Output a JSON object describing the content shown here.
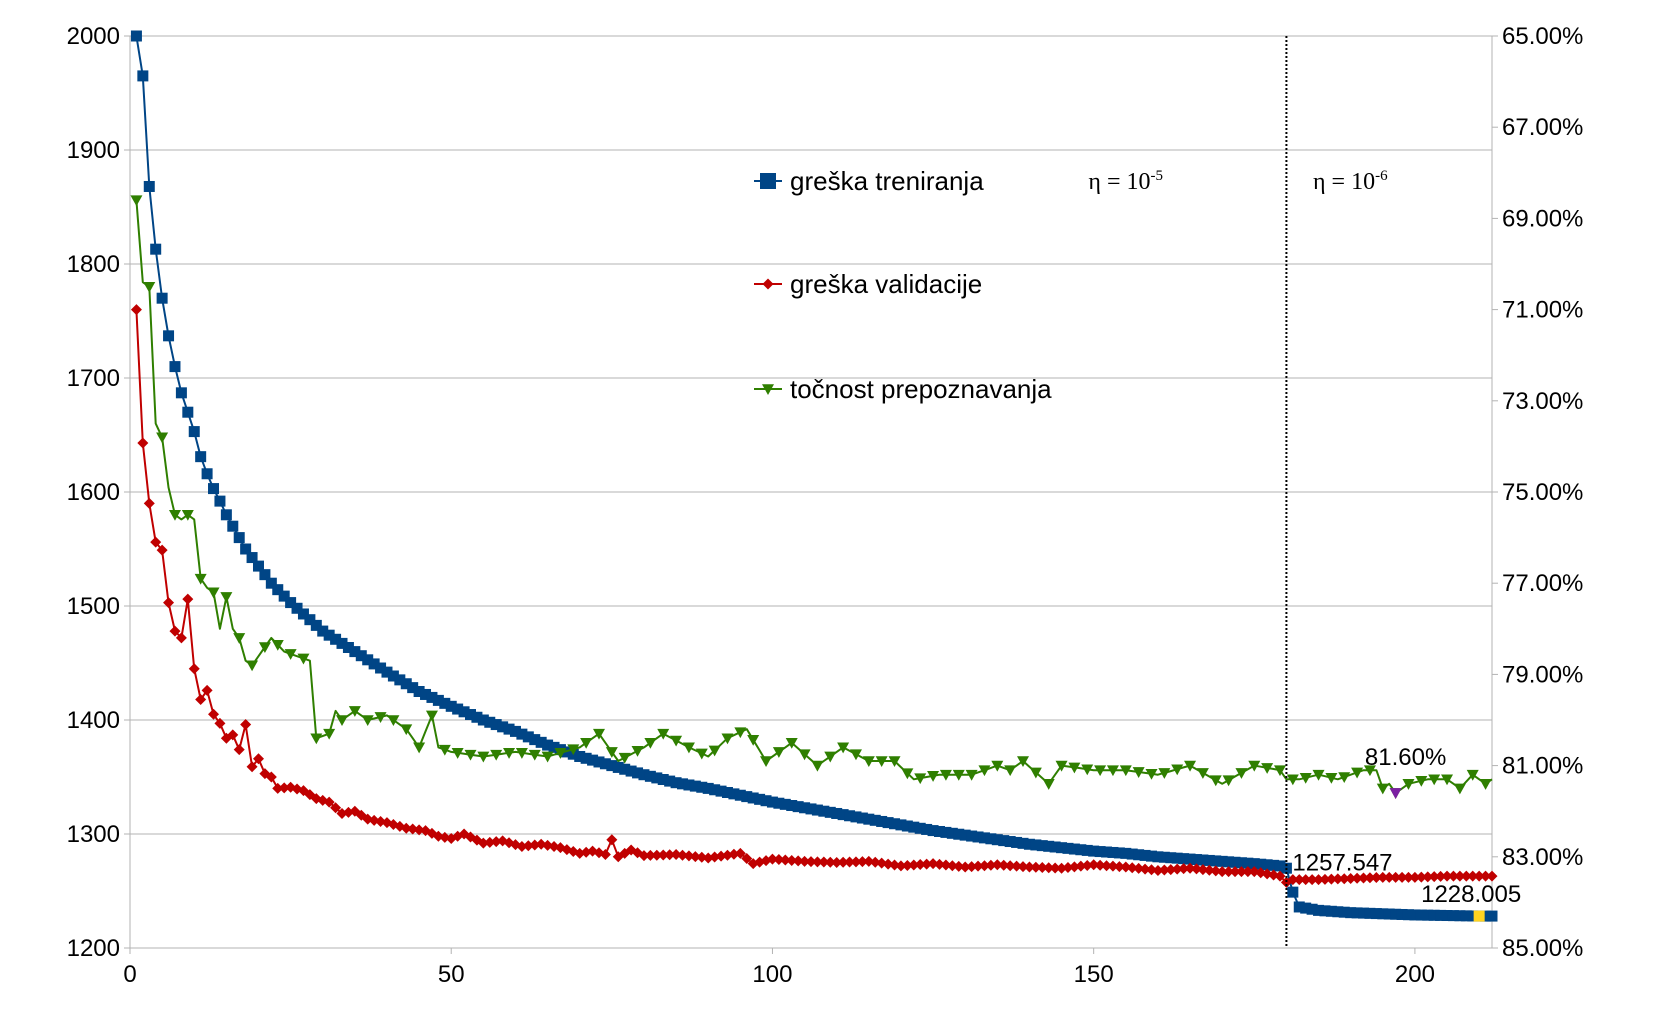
{
  "chart_data": {
    "type": "line",
    "title": "",
    "xlabel": "",
    "ylabel": "",
    "x_range": [
      0,
      212
    ],
    "x_ticks": [
      "0",
      "50",
      "100",
      "150",
      "200"
    ],
    "y_left_range": [
      1200,
      2000
    ],
    "y_left_ticks": [
      "1200",
      "1300",
      "1400",
      "1500",
      "1600",
      "1700",
      "1800",
      "1900",
      "2000"
    ],
    "y_right_range_top_to_bottom": [
      65,
      85
    ],
    "y_right_ticks": [
      "65.00%",
      "67.00%",
      "69.00%",
      "71.00%",
      "73.00%",
      "75.00%",
      "77.00%",
      "79.00%",
      "81.00%",
      "83.00%",
      "85.00%"
    ],
    "grid": true,
    "legend_position": "top-center",
    "vertical_marker_x": 180,
    "annotations": {
      "eta_left_base": "η = 10",
      "eta_left_exp": "-5",
      "eta_right_base": "η = 10",
      "eta_right_exp": "-6"
    },
    "series": [
      {
        "name": "greška treniranja",
        "axis": "left",
        "color": "#004586",
        "marker": "square",
        "anchors": [
          [
            1,
            2000
          ],
          [
            2,
            1965
          ],
          [
            3,
            1868
          ],
          [
            4,
            1813
          ],
          [
            5,
            1770
          ],
          [
            6,
            1737
          ],
          [
            7,
            1710
          ],
          [
            8,
            1687
          ],
          [
            9,
            1670
          ],
          [
            10,
            1653
          ],
          [
            11,
            1631
          ],
          [
            12,
            1616
          ],
          [
            13,
            1603
          ],
          [
            14,
            1592
          ],
          [
            15,
            1580
          ],
          [
            16,
            1570
          ],
          [
            17,
            1560
          ],
          [
            18,
            1550
          ],
          [
            20,
            1535
          ],
          [
            22,
            1520
          ],
          [
            25,
            1503
          ],
          [
            28,
            1488
          ],
          [
            30,
            1478
          ],
          [
            35,
            1460
          ],
          [
            40,
            1442
          ],
          [
            45,
            1425
          ],
          [
            50,
            1412
          ],
          [
            55,
            1400
          ],
          [
            60,
            1390
          ],
          [
            65,
            1378
          ],
          [
            70,
            1368
          ],
          [
            75,
            1360
          ],
          [
            80,
            1352
          ],
          [
            85,
            1345
          ],
          [
            90,
            1340
          ],
          [
            95,
            1334
          ],
          [
            100,
            1328
          ],
          [
            105,
            1323
          ],
          [
            110,
            1318
          ],
          [
            115,
            1313
          ],
          [
            120,
            1308
          ],
          [
            125,
            1303
          ],
          [
            130,
            1299
          ],
          [
            135,
            1295
          ],
          [
            140,
            1291
          ],
          [
            145,
            1288
          ],
          [
            150,
            1285
          ],
          [
            155,
            1283
          ],
          [
            160,
            1280
          ],
          [
            165,
            1278
          ],
          [
            170,
            1276
          ],
          [
            175,
            1274
          ],
          [
            179,
            1272
          ],
          [
            180,
            1270
          ],
          [
            181,
            1249
          ],
          [
            182,
            1236
          ],
          [
            185,
            1233
          ],
          [
            190,
            1231
          ],
          [
            195,
            1230
          ],
          [
            200,
            1229
          ],
          [
            205,
            1228.5
          ],
          [
            210,
            1228.005
          ],
          [
            212,
            1228
          ]
        ]
      },
      {
        "name": "greška validacije",
        "axis": "left",
        "color": "#c00000",
        "marker": "diamond",
        "anchors": [
          [
            1,
            1760
          ],
          [
            2,
            1643
          ],
          [
            3,
            1590
          ],
          [
            4,
            1556
          ],
          [
            5,
            1549
          ],
          [
            6,
            1503
          ],
          [
            7,
            1478
          ],
          [
            8,
            1472
          ],
          [
            9,
            1506
          ],
          [
            10,
            1445
          ],
          [
            11,
            1418
          ],
          [
            12,
            1426
          ],
          [
            13,
            1405
          ],
          [
            14,
            1397
          ],
          [
            15,
            1384
          ],
          [
            16,
            1387
          ],
          [
            17,
            1374
          ],
          [
            18,
            1396
          ],
          [
            19,
            1359
          ],
          [
            20,
            1366
          ],
          [
            21,
            1353
          ],
          [
            22,
            1350
          ],
          [
            23,
            1340
          ],
          [
            25,
            1341
          ],
          [
            27,
            1338
          ],
          [
            29,
            1331
          ],
          [
            31,
            1328
          ],
          [
            33,
            1318
          ],
          [
            35,
            1320
          ],
          [
            37,
            1313
          ],
          [
            40,
            1310
          ],
          [
            43,
            1305
          ],
          [
            46,
            1303
          ],
          [
            48,
            1298
          ],
          [
            50,
            1296
          ],
          [
            52,
            1300
          ],
          [
            55,
            1292
          ],
          [
            58,
            1294
          ],
          [
            61,
            1289
          ],
          [
            64,
            1291
          ],
          [
            67,
            1288
          ],
          [
            70,
            1283
          ],
          [
            72,
            1285
          ],
          [
            74,
            1282
          ],
          [
            75,
            1295
          ],
          [
            76,
            1280
          ],
          [
            78,
            1286
          ],
          [
            80,
            1281
          ],
          [
            85,
            1282
          ],
          [
            90,
            1279
          ],
          [
            95,
            1283
          ],
          [
            97,
            1274
          ],
          [
            100,
            1278
          ],
          [
            105,
            1276
          ],
          [
            110,
            1275
          ],
          [
            115,
            1276
          ],
          [
            120,
            1272
          ],
          [
            125,
            1274
          ],
          [
            130,
            1271
          ],
          [
            135,
            1273
          ],
          [
            140,
            1271
          ],
          [
            145,
            1270
          ],
          [
            150,
            1273
          ],
          [
            155,
            1271
          ],
          [
            160,
            1268
          ],
          [
            165,
            1270
          ],
          [
            170,
            1267
          ],
          [
            175,
            1267
          ],
          [
            179,
            1263
          ],
          [
            180,
            1257.547
          ],
          [
            181,
            1260
          ],
          [
            185,
            1260
          ],
          [
            190,
            1261
          ],
          [
            195,
            1262
          ],
          [
            200,
            1262
          ],
          [
            205,
            1263
          ],
          [
            212,
            1263
          ]
        ]
      },
      {
        "name": "točnost prepoznavanja",
        "axis": "right",
        "unit": "percent",
        "color": "#2f7f00",
        "marker": "triangle-down",
        "anchors": [
          [
            1,
            68.6
          ],
          [
            2,
            70.4
          ],
          [
            3,
            70.5
          ],
          [
            4,
            73.5
          ],
          [
            5,
            73.8
          ],
          [
            6,
            74.9
          ],
          [
            7,
            75.5
          ],
          [
            8,
            75.6
          ],
          [
            9,
            75.5
          ],
          [
            10,
            75.6
          ],
          [
            11,
            76.9
          ],
          [
            12,
            77.1
          ],
          [
            13,
            77.2
          ],
          [
            14,
            78.0
          ],
          [
            15,
            77.3
          ],
          [
            16,
            78.0
          ],
          [
            17,
            78.2
          ],
          [
            18,
            78.7
          ],
          [
            19,
            78.8
          ],
          [
            20,
            78.6
          ],
          [
            22,
            78.2
          ],
          [
            24,
            78.5
          ],
          [
            28,
            78.7
          ],
          [
            29,
            80.4
          ],
          [
            31,
            80.3
          ],
          [
            32,
            79.8
          ],
          [
            33,
            80.0
          ],
          [
            35,
            79.8
          ],
          [
            37,
            80.0
          ],
          [
            40,
            79.9
          ],
          [
            43,
            80.2
          ],
          [
            45,
            80.6
          ],
          [
            47,
            79.9
          ],
          [
            48,
            80.6
          ],
          [
            50,
            80.7
          ],
          [
            55,
            80.8
          ],
          [
            60,
            80.7
          ],
          [
            65,
            80.8
          ],
          [
            70,
            80.6
          ],
          [
            73,
            80.3
          ],
          [
            76,
            80.9
          ],
          [
            80,
            80.6
          ],
          [
            83,
            80.3
          ],
          [
            87,
            80.6
          ],
          [
            90,
            80.8
          ],
          [
            93,
            80.4
          ],
          [
            96,
            80.2
          ],
          [
            99,
            80.9
          ],
          [
            103,
            80.5
          ],
          [
            107,
            81.0
          ],
          [
            111,
            80.6
          ],
          [
            115,
            80.9
          ],
          [
            119,
            80.9
          ],
          [
            122,
            81.3
          ],
          [
            126,
            81.2
          ],
          [
            131,
            81.2
          ],
          [
            135,
            81.0
          ],
          [
            137,
            81.1
          ],
          [
            139,
            80.9
          ],
          [
            143,
            81.4
          ],
          [
            145,
            81.0
          ],
          [
            150,
            81.1
          ],
          [
            155,
            81.1
          ],
          [
            160,
            81.2
          ],
          [
            165,
            81.0
          ],
          [
            170,
            81.4
          ],
          [
            175,
            81.0
          ],
          [
            179,
            81.1
          ],
          [
            180,
            81.3
          ],
          [
            182,
            81.3
          ],
          [
            185,
            81.2
          ],
          [
            188,
            81.3
          ],
          [
            190,
            81.2
          ],
          [
            192,
            81.1
          ],
          [
            194,
            81.1
          ],
          [
            195,
            81.5
          ],
          [
            196,
            81.4
          ],
          [
            197,
            81.6
          ],
          [
            199,
            81.4
          ],
          [
            202,
            81.3
          ],
          [
            205,
            81.3
          ],
          [
            207,
            81.5
          ],
          [
            209,
            81.2
          ],
          [
            211,
            81.4
          ],
          [
            212,
            81.3
          ]
        ]
      }
    ],
    "data_labels": [
      {
        "text": "81.60%",
        "series": "točnost prepoznavanja",
        "x": 197,
        "y": 81.6
      },
      {
        "text": "1257.547",
        "series": "greška validacije",
        "x": 180,
        "y": 1257.547
      },
      {
        "text": "1228.005",
        "series": "greška treniranja",
        "x": 210,
        "y": 1228.005
      }
    ],
    "highlight_points": [
      {
        "series": "točnost prepoznavanja",
        "x": 197,
        "y": 81.6,
        "color": "#7b1fa2"
      },
      {
        "series": "greška treniranja",
        "x": 210,
        "y": 1228.005,
        "color": "#ffd320"
      }
    ]
  }
}
